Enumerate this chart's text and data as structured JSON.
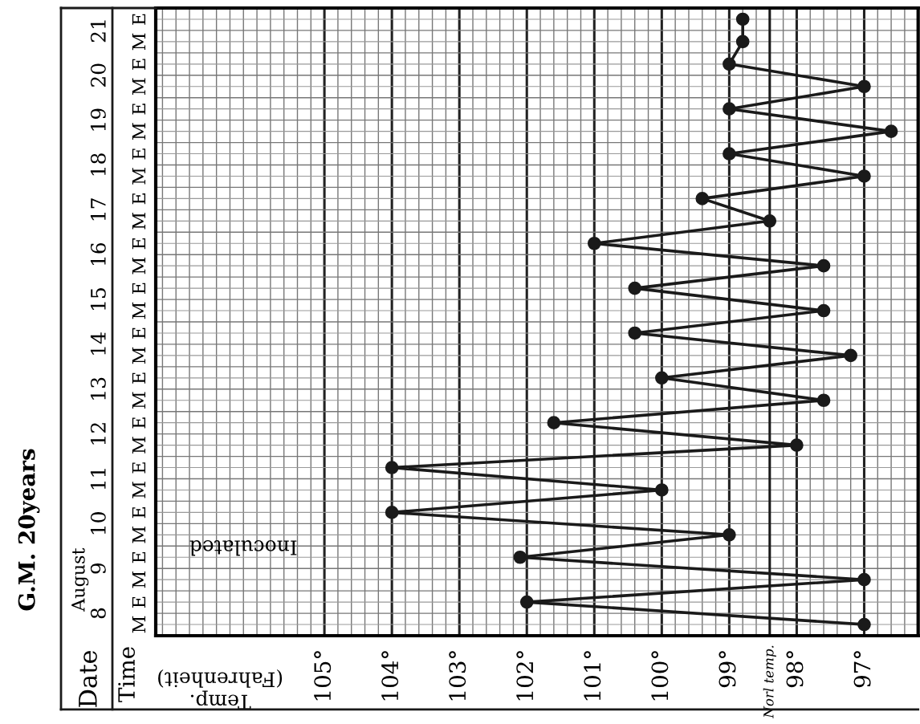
{
  "chart_data": {
    "type": "line",
    "orientation": "horizontal",
    "title": "G.M. 20years",
    "xlabel": "Temp.\n(Fahrenheit)",
    "categories": [
      "E",
      "M",
      "E",
      "M",
      "E",
      "M",
      "E",
      "M",
      "E",
      "M",
      "E",
      "M",
      "E",
      "M",
      "E",
      "M",
      "E",
      "M",
      "E",
      "M",
      "E",
      "M",
      "E",
      "M",
      "E",
      "M",
      "E",
      "M"
    ],
    "series": [
      {
        "color": "#1a1a1a",
        "values": [
          98.8,
          98.8,
          99.0,
          97.0,
          99.0,
          96.6,
          99.0,
          97.0,
          99.4,
          98.4,
          101.0,
          97.6,
          100.4,
          97.6,
          100.4,
          97.2,
          100.0,
          97.6,
          101.6,
          98.0,
          104.0,
          100.0,
          104.0,
          99.0,
          102.1,
          97.0,
          102.0,
          97.0
        ]
      }
    ],
    "xlim": [
      107.5,
      96.2
    ],
    "xticks": [
      {
        "value": 97,
        "label": "97°"
      },
      {
        "value": 98,
        "label": "98°"
      },
      {
        "value": 99,
        "label": "99°"
      },
      {
        "value": 100,
        "label": "100°"
      },
      {
        "value": 101,
        "label": "101°"
      },
      {
        "value": 102,
        "label": "102°"
      },
      {
        "value": 103,
        "label": "103°"
      },
      {
        "value": 104,
        "label": "104°"
      },
      {
        "value": 105,
        "label": "105°"
      }
    ],
    "ref_lines": [
      {
        "axis": "x",
        "value": 98.4,
        "label": "Norl temp.",
        "color": "#1a1a1a"
      }
    ],
    "annotations": [
      "Time",
      "Date",
      "August",
      "21",
      "20",
      "19",
      "18",
      "17",
      "16",
      "15",
      "14",
      "13",
      "12",
      "11",
      "10",
      "9",
      "8",
      "Inoculated"
    ],
    "grid": true,
    "marker": "circle",
    "line_style": "solid",
    "legend": false
  }
}
